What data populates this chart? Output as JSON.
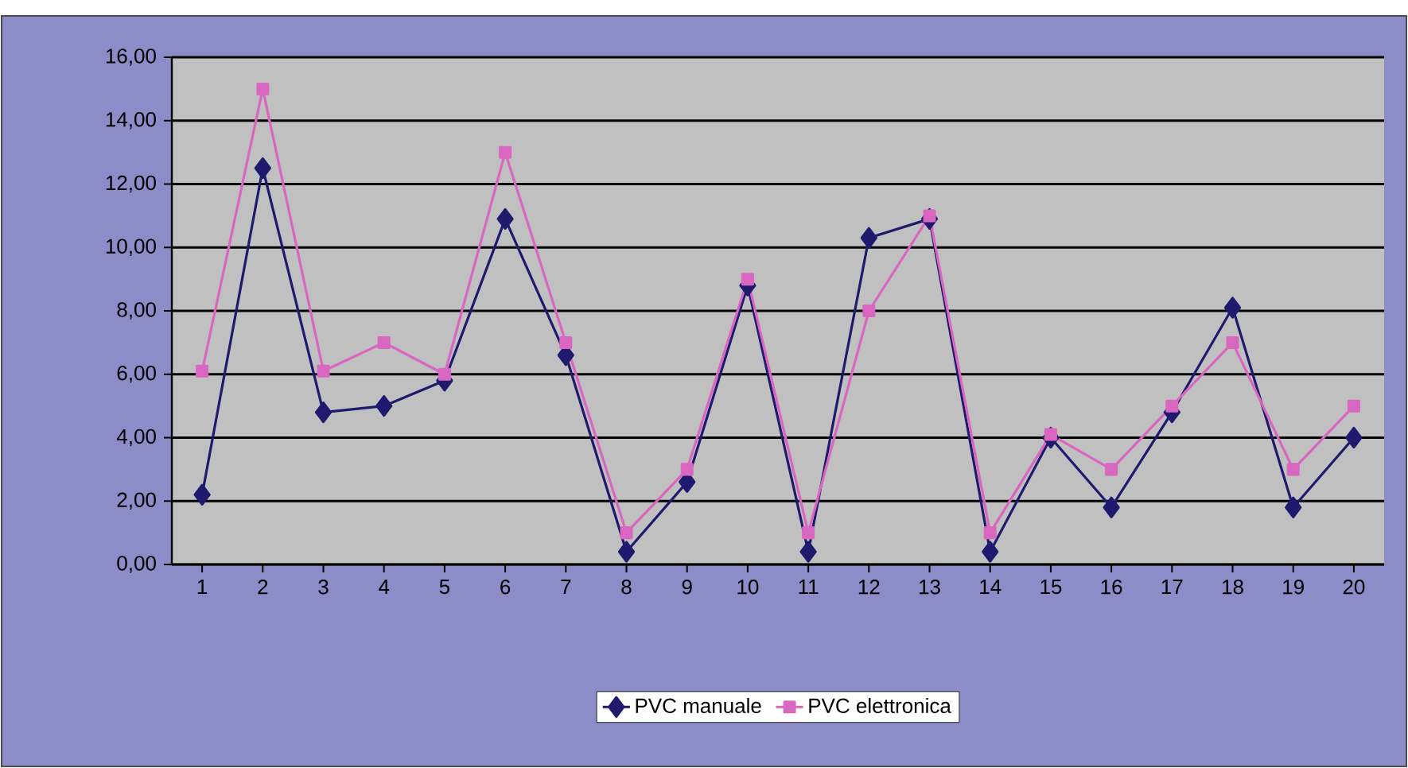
{
  "chart_data": {
    "type": "line",
    "categories": [
      "1",
      "2",
      "3",
      "4",
      "5",
      "6",
      "7",
      "8",
      "9",
      "10",
      "11",
      "12",
      "13",
      "14",
      "15",
      "16",
      "17",
      "18",
      "19",
      "20"
    ],
    "series": [
      {
        "name": "PVC manuale",
        "color": "#1f1a6e",
        "marker": "diamond",
        "values": [
          2.2,
          12.5,
          4.8,
          5.0,
          5.8,
          10.9,
          6.6,
          0.4,
          2.6,
          8.8,
          0.4,
          10.3,
          10.9,
          0.4,
          4.0,
          1.8,
          4.8,
          8.1,
          1.8,
          4.0
        ]
      },
      {
        "name": "PVC elettronica",
        "color": "#d966c0",
        "marker": "square",
        "values": [
          6.1,
          15.0,
          6.1,
          7.0,
          6.0,
          13.0,
          7.0,
          1.0,
          3.0,
          9.0,
          1.0,
          8.0,
          11.0,
          1.0,
          4.1,
          3.0,
          5.0,
          7.0,
          3.0,
          5.0
        ]
      }
    ],
    "ylim": [
      0,
      16
    ],
    "yticks": [
      {
        "value": 0,
        "label": "0,00"
      },
      {
        "value": 2,
        "label": "2,00"
      },
      {
        "value": 4,
        "label": "4,00"
      },
      {
        "value": 6,
        "label": "6,00"
      },
      {
        "value": 8,
        "label": "8,00"
      },
      {
        "value": 10,
        "label": "10,00"
      },
      {
        "value": 12,
        "label": "12,00"
      },
      {
        "value": 14,
        "label": "14,00"
      },
      {
        "value": 16,
        "label": "16,00"
      }
    ],
    "grid": "y",
    "legend": "bottom",
    "line_style": "solid"
  }
}
